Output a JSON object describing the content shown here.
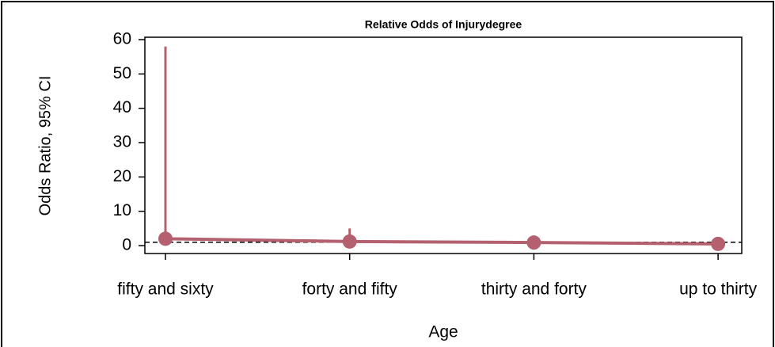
{
  "chart_data": {
    "type": "errorbar",
    "title": "Relative Odds of Injurydegree",
    "x_label": "Age",
    "y_label": "Odds Ratio, 95% CI",
    "categories": [
      "fifty and sixty",
      "forty and fifty",
      "thirty and forty",
      "up to thirty"
    ],
    "series": [
      {
        "name": "Odds Ratio",
        "color": "#b5606f",
        "values": [
          2.0,
          1.2,
          0.9,
          0.5
        ],
        "lower": [
          1.0,
          0.3,
          0.3,
          0.1
        ],
        "upper": [
          58,
          5,
          2.5,
          1.0
        ]
      }
    ],
    "reference_line": 1,
    "ylim": [
      -2.3,
      60.7
    ],
    "yticks": [
      0,
      10,
      20,
      30,
      40,
      50,
      60
    ]
  }
}
